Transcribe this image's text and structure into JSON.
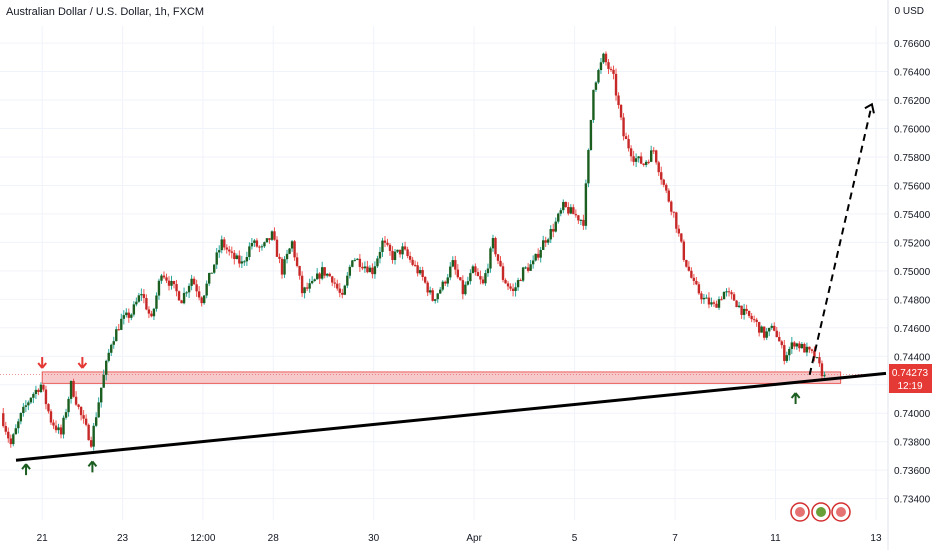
{
  "header": {
    "symbol_title": "Australian Dollar / U.S. Dollar, 1h, FXCM",
    "currency_label": "0 USD"
  },
  "colors": {
    "up": "#26a69a",
    "down": "#ef5350",
    "up_body": "#1b5e20",
    "down_body": "#c62828",
    "zone_fill": "#f8c9cb",
    "zone_stroke": "#e53935",
    "trendline": "#000000",
    "price_badge": "#e53935",
    "grid": "#f0f3fa",
    "arrow_up": "#1b5e20",
    "arrow_down": "#e53935"
  },
  "price_badge": {
    "price": "0.74273",
    "countdown": "12:19"
  },
  "chart_data": {
    "type": "candlestick",
    "title": "Australian Dollar / U.S. Dollar, 1h, FXCM",
    "ylabel": "USD",
    "ylim": [
      0.7325,
      0.7672
    ],
    "y_ticks": [
      "0.76600",
      "0.76400",
      "0.76200",
      "0.76000",
      "0.75800",
      "0.75600",
      "0.75400",
      "0.75200",
      "0.75000",
      "0.74800",
      "0.74600",
      "0.74400",
      "0.74200",
      "0.74000",
      "0.73800",
      "0.73600",
      "0.73400"
    ],
    "x_tick_labels": [
      "21",
      "23",
      "12:00",
      "28",
      "30",
      "Apr",
      "5",
      "7",
      "11",
      "13"
    ],
    "x_tick_index": [
      4,
      12,
      20,
      27,
      37,
      47,
      57,
      67,
      77,
      87
    ],
    "series_anchors": [
      [
        0,
        0.74
      ],
      [
        1,
        0.7378
      ],
      [
        2,
        0.7398
      ],
      [
        3,
        0.7412
      ],
      [
        4,
        0.742
      ],
      [
        5,
        0.7395
      ],
      [
        6,
        0.7385
      ],
      [
        7,
        0.742
      ],
      [
        8,
        0.7398
      ],
      [
        9,
        0.738
      ],
      [
        10,
        0.7418
      ],
      [
        11,
        0.745
      ],
      [
        12,
        0.7465
      ],
      [
        13,
        0.747
      ],
      [
        14,
        0.7485
      ],
      [
        15,
        0.7465
      ],
      [
        16,
        0.75
      ],
      [
        17,
        0.749
      ],
      [
        18,
        0.748
      ],
      [
        19,
        0.7495
      ],
      [
        20,
        0.748
      ],
      [
        21,
        0.75
      ],
      [
        22,
        0.752
      ],
      [
        23,
        0.751
      ],
      [
        24,
        0.7505
      ],
      [
        25,
        0.752
      ],
      [
        26,
        0.7515
      ],
      [
        27,
        0.7525
      ],
      [
        28,
        0.75
      ],
      [
        29,
        0.752
      ],
      [
        30,
        0.7485
      ],
      [
        31,
        0.749
      ],
      [
        32,
        0.75
      ],
      [
        33,
        0.7495
      ],
      [
        34,
        0.748
      ],
      [
        35,
        0.751
      ],
      [
        36,
        0.7505
      ],
      [
        37,
        0.75
      ],
      [
        38,
        0.752
      ],
      [
        39,
        0.751
      ],
      [
        40,
        0.7515
      ],
      [
        41,
        0.7505
      ],
      [
        42,
        0.7495
      ],
      [
        43,
        0.748
      ],
      [
        44,
        0.749
      ],
      [
        45,
        0.7505
      ],
      [
        46,
        0.7485
      ],
      [
        47,
        0.75
      ],
      [
        48,
        0.749
      ],
      [
        49,
        0.752
      ],
      [
        50,
        0.7495
      ],
      [
        51,
        0.7485
      ],
      [
        52,
        0.75
      ],
      [
        53,
        0.7505
      ],
      [
        54,
        0.752
      ],
      [
        55,
        0.753
      ],
      [
        56,
        0.7545
      ],
      [
        57,
        0.754
      ],
      [
        58,
        0.7535
      ],
      [
        59,
        0.763
      ],
      [
        60,
        0.765
      ],
      [
        61,
        0.7635
      ],
      [
        62,
        0.7595
      ],
      [
        63,
        0.758
      ],
      [
        64,
        0.7575
      ],
      [
        65,
        0.7585
      ],
      [
        66,
        0.756
      ],
      [
        67,
        0.754
      ],
      [
        68,
        0.751
      ],
      [
        69,
        0.749
      ],
      [
        70,
        0.748
      ],
      [
        71,
        0.7475
      ],
      [
        72,
        0.7485
      ],
      [
        73,
        0.748
      ],
      [
        74,
        0.747
      ],
      [
        75,
        0.7465
      ],
      [
        76,
        0.7455
      ],
      [
        77,
        0.746
      ],
      [
        78,
        0.744
      ],
      [
        79,
        0.745
      ],
      [
        80,
        0.7445
      ],
      [
        81,
        0.744
      ],
      [
        82,
        0.7425
      ]
    ],
    "support_zone": [
      0.7421,
      0.7429
    ],
    "trendline": [
      [
        0,
        0.7367
      ],
      [
        88,
        0.7428
      ]
    ],
    "projection": [
      [
        80,
        0.7427
      ],
      [
        86,
        0.7617
      ]
    ],
    "signal_arrows": [
      {
        "type": "up",
        "index": 1,
        "price": 0.736
      },
      {
        "type": "up",
        "index": 9,
        "price": 0.7362
      },
      {
        "type": "down",
        "index": 4,
        "price": 0.7436
      },
      {
        "type": "down",
        "index": 8,
        "price": 0.7436
      },
      {
        "type": "up",
        "index": 79,
        "price": 0.741
      }
    ],
    "last_price": 0.74273
  }
}
